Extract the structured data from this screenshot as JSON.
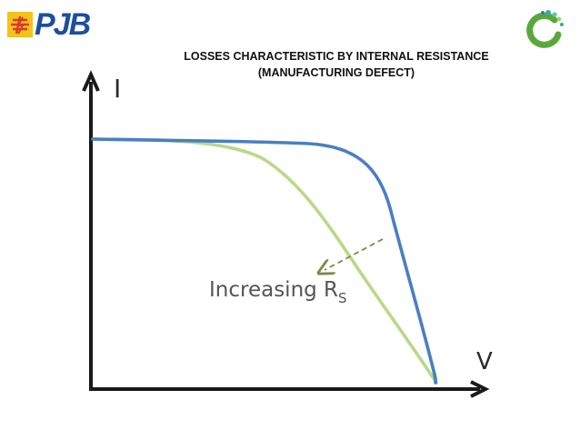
{
  "header": {
    "logo_text": "PJB",
    "title_line1": "LOSSES CHARACTERISTIC BY INTERNAL RESISTANCE",
    "title_line2": "(MANUFACTURING DEFECT)"
  },
  "diagram": {
    "y_axis_label": "I",
    "x_axis_label": "V",
    "annotation_main": "Increasing R",
    "annotation_sub": "S"
  },
  "colors": {
    "axis": "#1a1a1a",
    "curve_original": "#4a7fc1",
    "curve_increased_rs": "#b9d98a",
    "arrow": "#7a8c4a",
    "pjb_blue": "#1d4f9c",
    "pjb_red": "#d93a2b",
    "pjb_yellow": "#f3c31a",
    "ring_green": "#5aa83c",
    "ring_teal": "#3aa6a6"
  },
  "icons": {
    "left_logo": "pjb-logo-icon",
    "right_logo": "ring-logo-icon"
  }
}
